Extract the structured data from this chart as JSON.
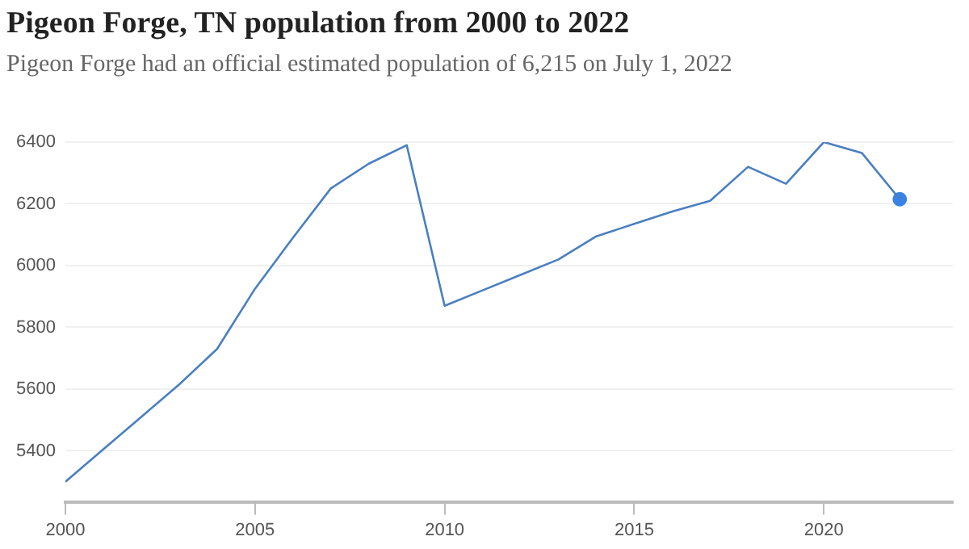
{
  "chart_data": {
    "type": "line",
    "title": "Pigeon Forge, TN population from 2000 to 2022",
    "subtitle": "Pigeon Forge had an official estimated population of 6,215 on July 1, 2022",
    "x": [
      2000,
      2001,
      2002,
      2003,
      2004,
      2005,
      2006,
      2007,
      2008,
      2009,
      2010,
      2011,
      2012,
      2013,
      2014,
      2015,
      2016,
      2017,
      2018,
      2019,
      2020,
      2021,
      2022
    ],
    "series": [
      {
        "color": "#4a7fc1",
        "values": [
          5300,
          5405,
          5510,
          5615,
          5730,
          5925,
          6090,
          6250,
          6330,
          6390,
          5870,
          5920,
          5970,
          6020,
          6095,
          6135,
          6175,
          6210,
          6320,
          6265,
          6400,
          6365,
          6215
        ]
      },
      {
        "type": "scatter",
        "color": "#3b82e6",
        "x": [
          2022
        ],
        "values": [
          6215
        ]
      }
    ],
    "xlim": [
      2000,
      2023.4
    ],
    "xticks": [
      2000,
      2005,
      2010,
      2015,
      2020
    ],
    "ylim": [
      5235,
      6400
    ],
    "yticks": [
      5400,
      5600,
      5800,
      6000,
      6200,
      6400
    ],
    "grid": "y",
    "legend": false,
    "line_style": "solid"
  }
}
